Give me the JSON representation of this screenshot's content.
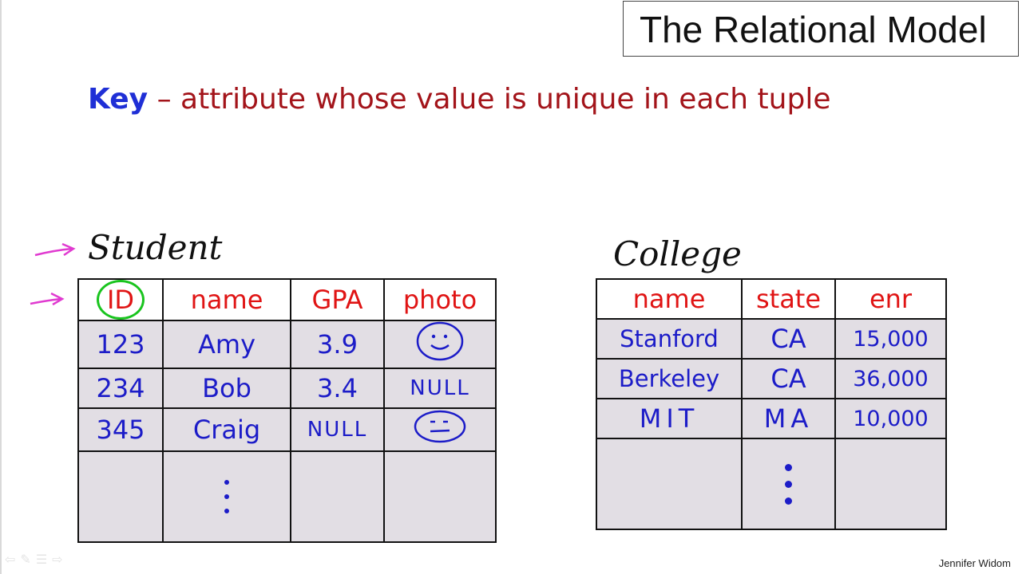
{
  "slide": {
    "title": "The Relational Model",
    "key_term": "Key",
    "key_definition": " – attribute whose value is unique in each tuple",
    "author": "Jennifer Widom"
  },
  "student": {
    "name": "Student",
    "headers": [
      "ID",
      "name",
      "GPA",
      "photo"
    ],
    "rows": [
      [
        "123",
        "Amy",
        "3.9",
        "smiley-face"
      ],
      [
        "234",
        "Bob",
        "3.4",
        "NULL"
      ],
      [
        "345",
        "Craig",
        "NULL",
        "neutral-face"
      ]
    ]
  },
  "college": {
    "name": "College",
    "headers": [
      "name",
      "state",
      "enr"
    ],
    "rows": [
      [
        "Stanford",
        "CA",
        "15,000"
      ],
      [
        "Berkeley",
        "CA",
        "36,000"
      ],
      [
        "MIT",
        "MA",
        "10,000"
      ]
    ]
  },
  "colors": {
    "key_term": "#1f2fd6",
    "definition": "#a3141a",
    "header_text": "#e01414",
    "cell_text": "#1c1cc8",
    "row_fill": "#e2dee4",
    "annotation_arrow": "#e03ad0",
    "key_circle": "#19c41e"
  },
  "nav_icons": [
    "prev-icon",
    "pen-icon",
    "menu-icon",
    "next-icon"
  ]
}
